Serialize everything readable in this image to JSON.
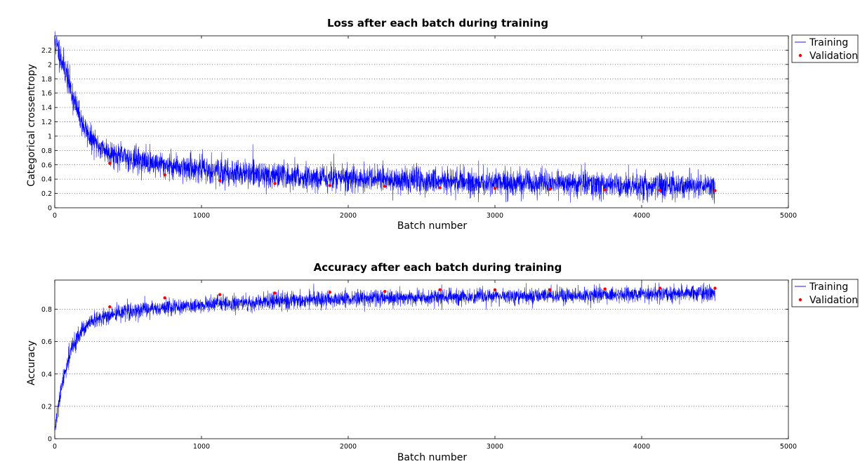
{
  "chart_data": [
    {
      "type": "line",
      "title": "Loss after each batch during training",
      "xlabel": "Batch number",
      "ylabel": "Categorical crossentropy",
      "xlim": [
        0,
        5000
      ],
      "ylim": [
        0,
        2.4
      ],
      "xticks": [
        "0",
        "1000",
        "2000",
        "3000",
        "4000",
        "5000"
      ],
      "yticks": [
        "0",
        "0.2",
        "0.4",
        "0.6",
        "0.8",
        "1",
        "1.2",
        "1.4",
        "1.6",
        "1.8",
        "2",
        "2.2"
      ],
      "grid": true,
      "legend_position": "outside-top-right",
      "series": [
        {
          "name": "Training",
          "style": "line",
          "color": "#0000ff",
          "x": [
            0,
            25,
            50,
            75,
            100,
            150,
            200,
            250,
            300,
            375,
            450,
            550,
            650,
            750,
            900,
            1050,
            1125,
            1300,
            1500,
            1700,
            1875,
            2100,
            2250,
            2500,
            2625,
            2800,
            3000,
            3200,
            3375,
            3600,
            3750,
            4000,
            4125,
            4300,
            4500
          ],
          "values": [
            2.33,
            2.2,
            2.05,
            1.9,
            1.72,
            1.38,
            1.12,
            0.95,
            0.86,
            0.77,
            0.72,
            0.67,
            0.63,
            0.6,
            0.56,
            0.53,
            0.5,
            0.48,
            0.45,
            0.43,
            0.42,
            0.4,
            0.39,
            0.38,
            0.37,
            0.36,
            0.35,
            0.34,
            0.34,
            0.33,
            0.32,
            0.31,
            0.31,
            0.3,
            0.29
          ]
        },
        {
          "name": "Validation",
          "style": "markers",
          "color": "#ff0000",
          "x": [
            375,
            750,
            1125,
            1500,
            1875,
            2250,
            2625,
            3000,
            3375,
            3750,
            4125,
            4500
          ],
          "values": [
            0.62,
            0.46,
            0.38,
            0.34,
            0.31,
            0.3,
            0.28,
            0.27,
            0.26,
            0.25,
            0.245,
            0.24
          ]
        }
      ]
    },
    {
      "type": "line",
      "title": "Accuracy after each batch during training",
      "xlabel": "Batch number",
      "ylabel": "Accuracy",
      "xlim": [
        0,
        5000
      ],
      "ylim": [
        0,
        0.98
      ],
      "xticks": [
        "0",
        "1000",
        "2000",
        "3000",
        "4000",
        "5000"
      ],
      "yticks": [
        "0",
        "0.2",
        "0.4",
        "0.6",
        "0.8"
      ],
      "grid": true,
      "legend_position": "outside-top-right",
      "series": [
        {
          "name": "Training",
          "style": "line",
          "color": "#0000ff",
          "x": [
            0,
            25,
            50,
            75,
            100,
            150,
            200,
            250,
            300,
            375,
            450,
            550,
            650,
            750,
            900,
            1050,
            1125,
            1300,
            1500,
            1700,
            1875,
            2100,
            2250,
            2500,
            2625,
            2800,
            3000,
            3200,
            3375,
            3600,
            3750,
            4000,
            4125,
            4300,
            4500
          ],
          "values": [
            0.05,
            0.2,
            0.33,
            0.43,
            0.52,
            0.62,
            0.68,
            0.72,
            0.74,
            0.76,
            0.78,
            0.79,
            0.8,
            0.81,
            0.82,
            0.83,
            0.835,
            0.84,
            0.85,
            0.855,
            0.86,
            0.865,
            0.87,
            0.87,
            0.875,
            0.875,
            0.88,
            0.88,
            0.885,
            0.885,
            0.89,
            0.89,
            0.895,
            0.895,
            0.9
          ]
        },
        {
          "name": "Validation",
          "style": "markers",
          "color": "#ff0000",
          "x": [
            375,
            750,
            1125,
            1500,
            1875,
            2250,
            2625,
            3000,
            3375,
            3750,
            4125,
            4500
          ],
          "values": [
            0.815,
            0.87,
            0.89,
            0.9,
            0.905,
            0.91,
            0.92,
            0.92,
            0.92,
            0.925,
            0.93,
            0.93
          ]
        }
      ]
    }
  ]
}
